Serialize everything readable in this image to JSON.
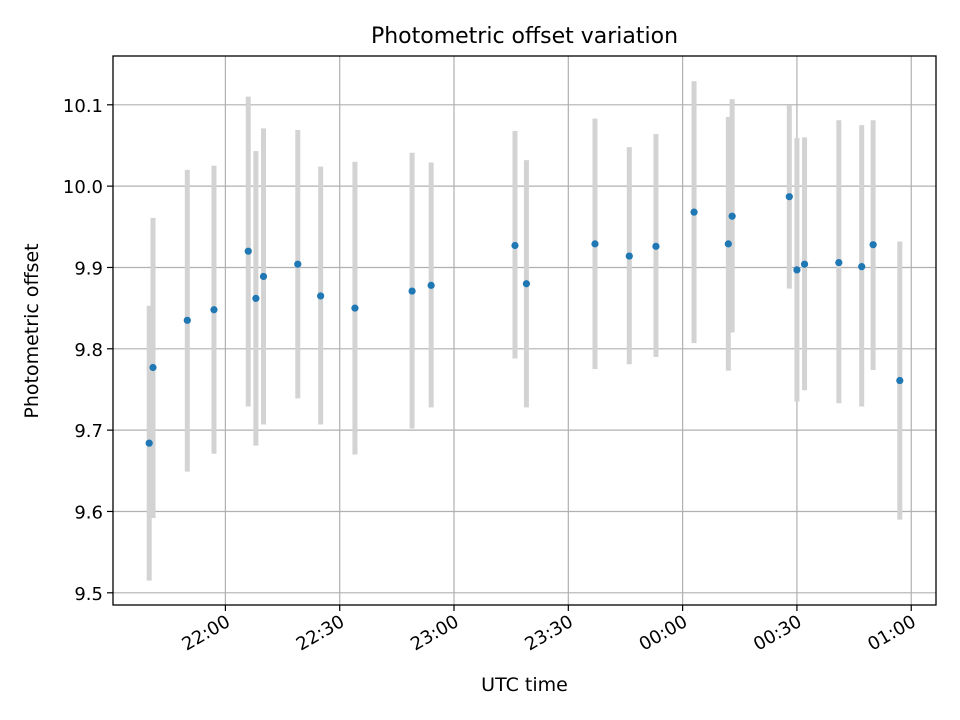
{
  "chart_data": {
    "type": "scatter",
    "title": "Photometric offset variation",
    "xlabel": "UTC time",
    "ylabel": "Photometric offset",
    "x_is_time": true,
    "x_ticks": [
      "22:00",
      "22:30",
      "23:00",
      "23:30",
      "00:00",
      "00:30",
      "01:00"
    ],
    "x_tick_minutes": [
      1320,
      1350,
      1380,
      1410,
      1440,
      1470,
      1500
    ],
    "xlim_minutes": [
      1290.5,
      1506.5
    ],
    "ylim": [
      9.485,
      10.16
    ],
    "y_ticks": [
      "9.5",
      "9.6",
      "9.7",
      "9.8",
      "9.9",
      "10.0",
      "10.1"
    ],
    "y_tick_values": [
      9.5,
      9.6,
      9.7,
      9.8,
      9.9,
      10.0,
      10.1
    ],
    "grid": true,
    "colors": {
      "marker": "#1f77b4",
      "errorbar": "#d3d3d3",
      "grid": "#b0b0b0"
    },
    "points": [
      {
        "t": "21:40",
        "y": 9.684,
        "lo": 9.515,
        "hi": 9.853
      },
      {
        "t": "21:41",
        "y": 9.777,
        "lo": 9.592,
        "hi": 9.961
      },
      {
        "t": "21:50",
        "y": 9.835,
        "lo": 9.649,
        "hi": 10.02
      },
      {
        "t": "21:57",
        "y": 9.848,
        "lo": 9.671,
        "hi": 10.025
      },
      {
        "t": "22:06",
        "y": 9.92,
        "lo": 9.729,
        "hi": 10.11
      },
      {
        "t": "22:08",
        "y": 9.862,
        "lo": 9.681,
        "hi": 10.043
      },
      {
        "t": "22:10",
        "y": 9.889,
        "lo": 9.707,
        "hi": 10.071
      },
      {
        "t": "22:19",
        "y": 9.904,
        "lo": 9.739,
        "hi": 10.069
      },
      {
        "t": "22:25",
        "y": 9.865,
        "lo": 9.707,
        "hi": 10.024
      },
      {
        "t": "22:34",
        "y": 9.85,
        "lo": 9.67,
        "hi": 10.03
      },
      {
        "t": "22:49",
        "y": 9.871,
        "lo": 9.702,
        "hi": 10.041
      },
      {
        "t": "22:54",
        "y": 9.878,
        "lo": 9.728,
        "hi": 10.029
      },
      {
        "t": "23:16",
        "y": 9.927,
        "lo": 9.788,
        "hi": 10.068
      },
      {
        "t": "23:19",
        "y": 9.88,
        "lo": 9.728,
        "hi": 10.032
      },
      {
        "t": "23:37",
        "y": 9.929,
        "lo": 9.775,
        "hi": 10.083
      },
      {
        "t": "23:46",
        "y": 9.914,
        "lo": 9.781,
        "hi": 10.048
      },
      {
        "t": "23:53",
        "y": 9.926,
        "lo": 9.79,
        "hi": 10.064
      },
      {
        "t": "00:03",
        "y": 9.968,
        "lo": 9.807,
        "hi": 10.129
      },
      {
        "t": "00:12",
        "y": 9.929,
        "lo": 9.773,
        "hi": 10.085
      },
      {
        "t": "00:13",
        "y": 9.963,
        "lo": 9.82,
        "hi": 10.107
      },
      {
        "t": "00:28",
        "y": 9.987,
        "lo": 9.874,
        "hi": 10.099
      },
      {
        "t": "00:30",
        "y": 9.897,
        "lo": 9.735,
        "hi": 10.059
      },
      {
        "t": "00:32",
        "y": 9.904,
        "lo": 9.749,
        "hi": 10.06
      },
      {
        "t": "00:41",
        "y": 9.906,
        "lo": 9.733,
        "hi": 10.081
      },
      {
        "t": "00:47",
        "y": 9.901,
        "lo": 9.729,
        "hi": 10.075
      },
      {
        "t": "00:50",
        "y": 9.928,
        "lo": 9.774,
        "hi": 10.081
      },
      {
        "t": "00:57",
        "y": 9.761,
        "lo": 9.59,
        "hi": 9.932
      }
    ]
  }
}
